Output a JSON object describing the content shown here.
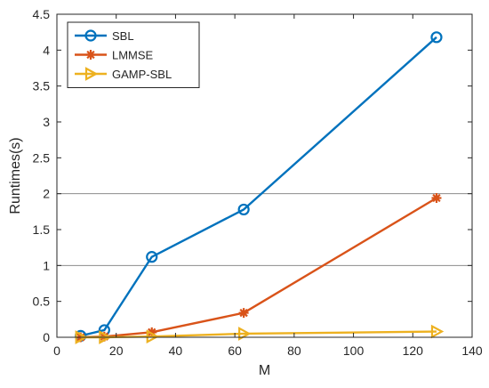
{
  "chart_data": {
    "type": "line",
    "xlabel": "M",
    "ylabel": "Runtimes(s)",
    "xlim": [
      0,
      140
    ],
    "ylim": [
      0,
      4.5
    ],
    "xticks": [
      0,
      20,
      40,
      60,
      80,
      100,
      120,
      140
    ],
    "yticks": [
      0,
      0.5,
      1,
      1.5,
      2,
      2.5,
      3,
      3.5,
      4,
      4.5
    ],
    "grid": false,
    "reference_lines_y": [
      1,
      2
    ],
    "legend_position": "top-left",
    "series": [
      {
        "name": "SBL",
        "color": "#0072BD",
        "marker": "circle",
        "x": [
          8,
          16,
          32,
          63,
          128
        ],
        "y": [
          0.02,
          0.1,
          1.12,
          1.78,
          4.18
        ]
      },
      {
        "name": "LMMSE",
        "color": "#D95319",
        "marker": "asterisk",
        "x": [
          8,
          16,
          32,
          63,
          128
        ],
        "y": [
          0.0,
          0.01,
          0.07,
          0.34,
          1.94
        ]
      },
      {
        "name": "GAMP-SBL",
        "color": "#EDB120",
        "marker": "triangle-right",
        "x": [
          8,
          16,
          32,
          63,
          128
        ],
        "y": [
          0.0,
          0.0,
          0.01,
          0.05,
          0.08
        ]
      }
    ]
  }
}
